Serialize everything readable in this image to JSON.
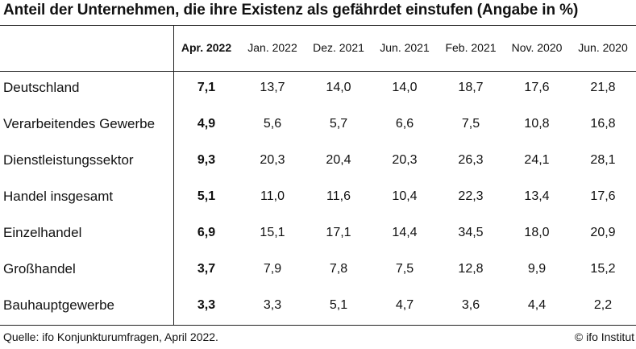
{
  "title": "Anteil der Unternehmen, die ihre Existenz als gefährdet einstufen (Angabe in %)",
  "columns": [
    "Apr. 2022",
    "Jan. 2022",
    "Dez. 2021",
    "Jun. 2021",
    "Feb. 2021",
    "Nov. 2020",
    "Jun. 2020"
  ],
  "rows": [
    {
      "label": "Deutschland",
      "values": [
        "7,1",
        "13,7",
        "14,0",
        "14,0",
        "18,7",
        "17,6",
        "21,8"
      ]
    },
    {
      "label": "Verarbeitendes Gewerbe",
      "values": [
        "4,9",
        "5,6",
        "5,7",
        "6,6",
        "7,5",
        "10,8",
        "16,8"
      ]
    },
    {
      "label": "Dienstleistungssektor",
      "values": [
        "9,3",
        "20,3",
        "20,4",
        "20,3",
        "26,3",
        "24,1",
        "28,1"
      ]
    },
    {
      "label": "Handel insgesamt",
      "values": [
        "5,1",
        "11,0",
        "11,6",
        "10,4",
        "22,3",
        "13,4",
        "17,6"
      ]
    },
    {
      "label": "Einzelhandel",
      "values": [
        "6,9",
        "15,1",
        "17,1",
        "14,4",
        "34,5",
        "18,0",
        "20,9"
      ]
    },
    {
      "label": "Großhandel",
      "values": [
        "3,7",
        "7,9",
        "7,8",
        "7,5",
        "12,8",
        "9,9",
        "15,2"
      ]
    },
    {
      "label": "Bauhauptgewerbe",
      "values": [
        "3,3",
        "3,3",
        "5,1",
        "4,7",
        "3,6",
        "4,4",
        "2,2"
      ]
    }
  ],
  "footer": {
    "source": "Quelle: ifo Konjunkturumfragen, April 2022.",
    "copyright": "© ifo Institut"
  },
  "chart_data": {
    "type": "table",
    "title": "Anteil der Unternehmen, die ihre Existenz als gefährdet einstufen (Angabe in %)",
    "columns": [
      "Apr. 2022",
      "Jan. 2022",
      "Dez. 2021",
      "Jun. 2021",
      "Feb. 2021",
      "Nov. 2020",
      "Jun. 2020"
    ],
    "series": [
      {
        "name": "Deutschland",
        "values": [
          7.1,
          13.7,
          14.0,
          14.0,
          18.7,
          17.6,
          21.8
        ]
      },
      {
        "name": "Verarbeitendes Gewerbe",
        "values": [
          4.9,
          5.6,
          5.7,
          6.6,
          7.5,
          10.8,
          16.8
        ]
      },
      {
        "name": "Dienstleistungssektor",
        "values": [
          9.3,
          20.3,
          20.4,
          20.3,
          26.3,
          24.1,
          28.1
        ]
      },
      {
        "name": "Handel insgesamt",
        "values": [
          5.1,
          11.0,
          11.6,
          10.4,
          22.3,
          13.4,
          17.6
        ]
      },
      {
        "name": "Einzelhandel",
        "values": [
          6.9,
          15.1,
          17.1,
          14.4,
          34.5,
          18.0,
          20.9
        ]
      },
      {
        "name": "Großhandel",
        "values": [
          3.7,
          7.9,
          7.8,
          7.5,
          12.8,
          9.9,
          15.2
        ]
      },
      {
        "name": "Bauhauptgewerbe",
        "values": [
          3.3,
          3.3,
          5.1,
          4.7,
          3.6,
          4.4,
          2.2
        ]
      }
    ]
  }
}
